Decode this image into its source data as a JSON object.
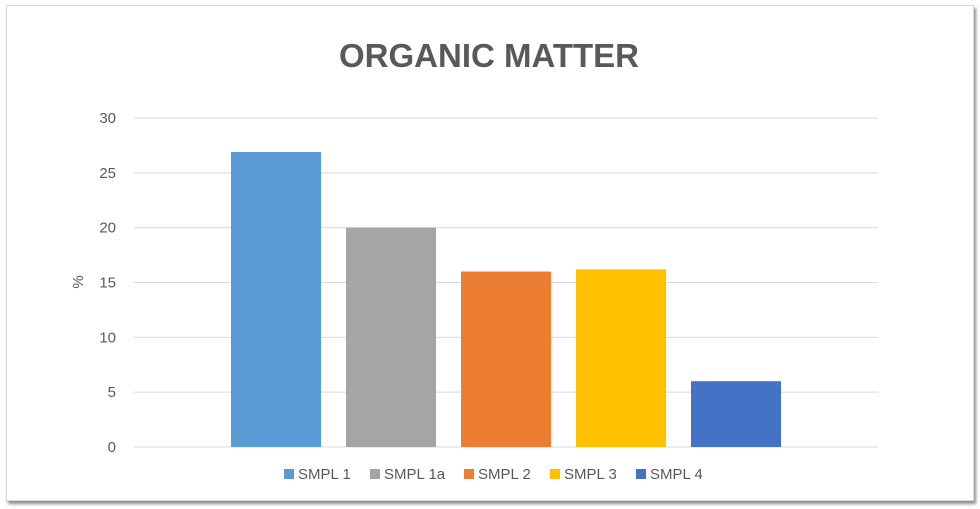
{
  "chart_data": {
    "type": "bar",
    "title": "ORGANIC MATTER",
    "xlabel": "",
    "ylabel": "%",
    "ylim": [
      0,
      30
    ],
    "yticks": [
      0,
      5,
      10,
      15,
      20,
      25,
      30
    ],
    "grid": true,
    "legend_position": "bottom",
    "categories": [
      "SMPL 1",
      "SMPL 1a",
      "SMPL 2",
      "SMPL 3",
      "SMPL 4"
    ],
    "values": [
      26.9,
      20.0,
      16.0,
      16.2,
      6.0
    ],
    "colors": [
      "#5b9bd5",
      "#a5a5a5",
      "#ed7d31",
      "#ffc000",
      "#4472c4"
    ]
  }
}
